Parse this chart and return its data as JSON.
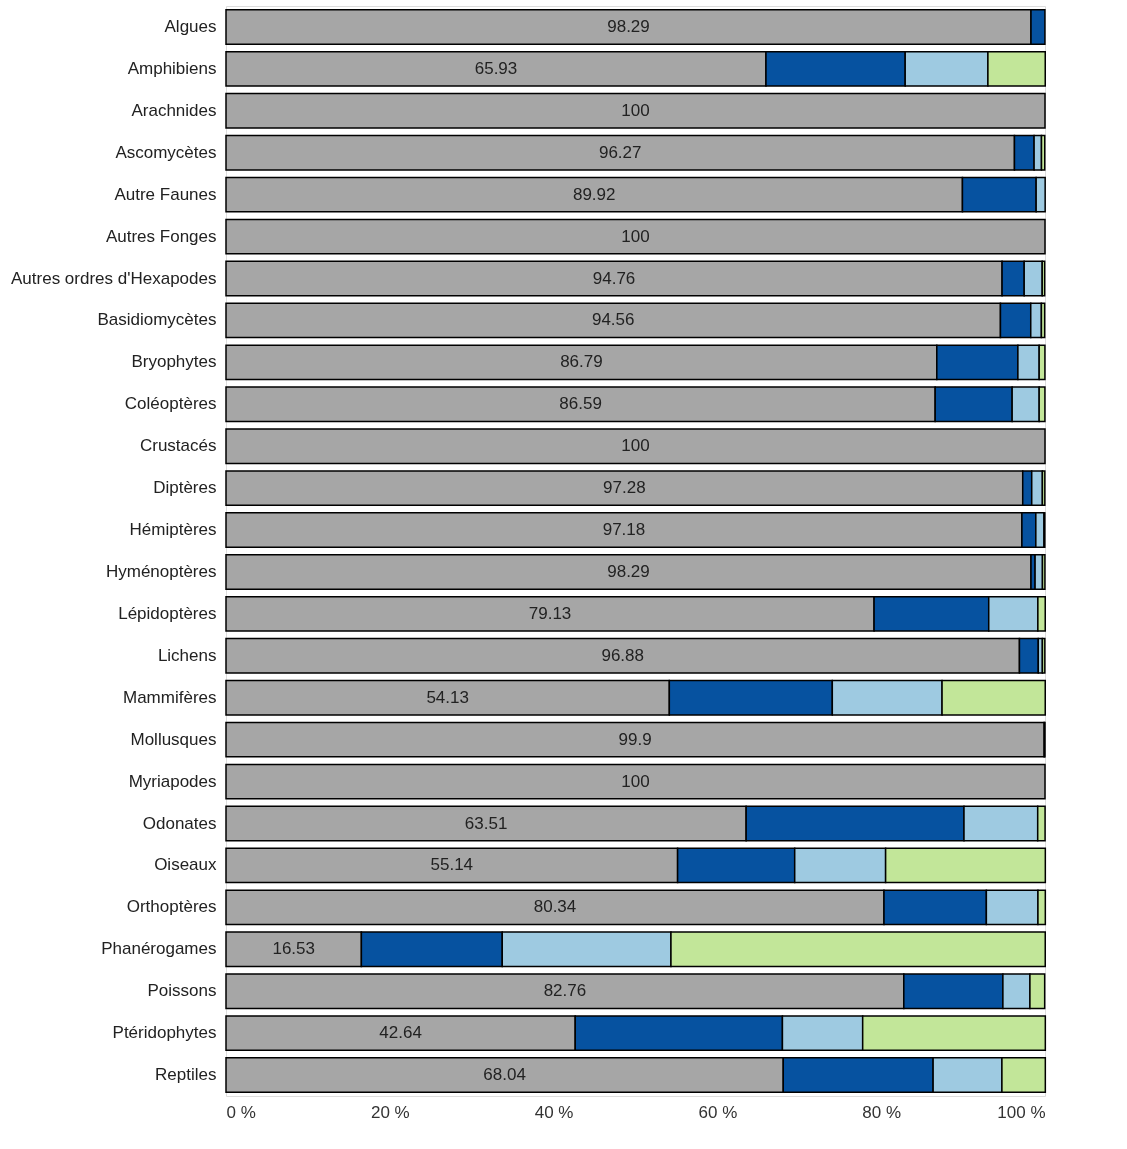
{
  "chart_data": {
    "type": "bar",
    "orientation": "horizontal",
    "stacked": true,
    "categories": [
      "Algues",
      "Amphibiens",
      "Arachnides",
      "Ascomycètes",
      "Autre Faunes",
      "Autres Fonges",
      "Autres ordres d'Hexapodes",
      "Basidiomycètes",
      "Bryophytes",
      "Coléoptères",
      "Crustacés",
      "Diptères",
      "Hémiptères",
      "Hyménoptères",
      "Lépidoptères",
      "Lichens",
      "Mammifères",
      "Mollusques",
      "Myriapodes",
      "Odonates",
      "Oiseaux",
      "Orthoptères",
      "Phanérogames",
      "Poissons",
      "Ptéridophytes",
      "Reptiles"
    ],
    "series": [
      {
        "color": "#a6a6a6",
        "values": [
          98.29,
          65.93,
          100,
          96.27,
          89.92,
          100,
          94.76,
          94.56,
          86.79,
          86.59,
          100,
          97.28,
          97.18,
          98.29,
          79.13,
          96.88,
          54.13,
          99.9,
          100,
          63.51,
          55.14,
          80.34,
          16.53,
          82.76,
          42.64,
          68.04
        ],
        "value_labels": [
          "98.29",
          "65.93",
          "100",
          "96.27",
          "89.92",
          "100",
          "94.76",
          "94.56",
          "86.79",
          "86.59",
          "100",
          "97.28",
          "97.18",
          "98.29",
          "79.13",
          "96.88",
          "54.13",
          "99.9",
          "100",
          "63.51",
          "55.14",
          "80.34",
          "16.53",
          "82.76",
          "42.64",
          "68.04"
        ]
      },
      {
        "color": "#0652a0",
        "values": [
          1.7,
          17.0,
          null,
          2.4,
          9.0,
          null,
          2.7,
          3.7,
          9.9,
          9.4,
          null,
          1.1,
          1.7,
          0.5,
          14.0,
          2.3,
          19.9,
          0.1,
          null,
          26.6,
          14.3,
          12.5,
          17.2,
          12.1,
          25.3,
          18.3
        ]
      },
      {
        "color": "#9ecae1",
        "values": [
          null,
          10.1,
          null,
          0.9,
          1.1,
          null,
          2.2,
          1.3,
          2.6,
          3.3,
          null,
          1.3,
          1.0,
          0.9,
          6.0,
          0.5,
          13.4,
          null,
          null,
          9.0,
          11.1,
          6.3,
          20.6,
          3.3,
          9.8,
          8.4
        ]
      },
      {
        "color": "#c2e699",
        "values": [
          null,
          7.0,
          null,
          0.4,
          null,
          null,
          0.3,
          0.4,
          0.7,
          0.7,
          null,
          0.3,
          0.1,
          0.3,
          0.9,
          0.3,
          12.6,
          null,
          null,
          0.9,
          19.5,
          0.9,
          45.7,
          1.8,
          22.3,
          5.3
        ]
      }
    ],
    "xlim": [
      0,
      100
    ],
    "xticks": [
      {
        "value": 0,
        "label": "0 %"
      },
      {
        "value": 20,
        "label": "20 %"
      },
      {
        "value": 40,
        "label": "40 %"
      },
      {
        "value": 60,
        "label": "60 %"
      },
      {
        "value": 80,
        "label": "80 %"
      },
      {
        "value": 100,
        "label": "100 %"
      }
    ],
    "grid": false,
    "legend": false
  }
}
